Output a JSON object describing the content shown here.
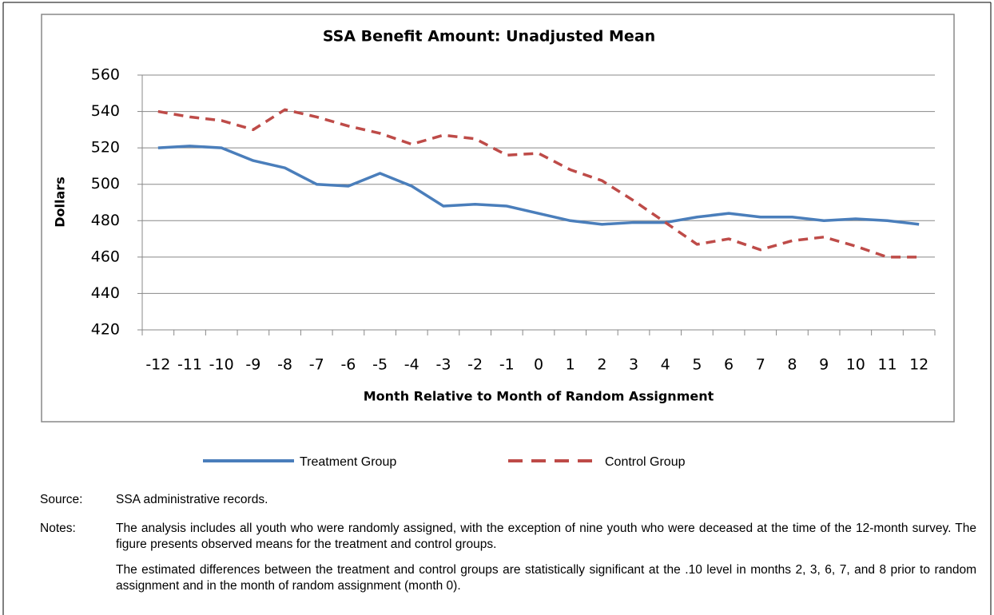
{
  "chart_data": {
    "type": "line",
    "title": "SSA Benefit Amount: Unadjusted Mean",
    "y_label": "Dollars",
    "x_label": "Month Relative to Month of Random Assignment",
    "categories": [
      "-12",
      "-11",
      "-10",
      "-9",
      "-8",
      "-7",
      "-6",
      "-5",
      "-4",
      "-3",
      "-2",
      "-1",
      "0",
      "1",
      "2",
      "3",
      "4",
      "5",
      "6",
      "7",
      "8",
      "9",
      "10",
      "11",
      "12"
    ],
    "series": [
      {
        "name": "Treatment Group",
        "color": "#4a7ebb",
        "dashed": false,
        "values": [
          520,
          521,
          520,
          513,
          509,
          500,
          499,
          506,
          499,
          488,
          489,
          488,
          484,
          480,
          478,
          479,
          479,
          482,
          484,
          482,
          482,
          480,
          481,
          480,
          478
        ]
      },
      {
        "name": "Control Group",
        "color": "#be4b48",
        "dashed": true,
        "values": [
          540,
          537,
          535,
          530,
          541,
          537,
          532,
          528,
          522,
          527,
          525,
          516,
          517,
          508,
          502,
          491,
          479,
          467,
          470,
          464,
          469,
          471,
          466,
          460,
          460
        ]
      }
    ],
    "ylim": [
      420,
      560
    ],
    "yticks": [
      420,
      440,
      460,
      480,
      500,
      520,
      540,
      560
    ],
    "grid": true,
    "legend": "bottom"
  },
  "source": {
    "label": "Source:",
    "text": "SSA administrative records."
  },
  "notes": {
    "label": "Notes:",
    "paragraphs": [
      "The analysis includes all youth who were randomly assigned, with the exception of nine youth who were deceased at the time of the 12-month survey. The figure presents observed means for the treatment and control groups.",
      "The estimated differences between the treatment and control groups are statistically significant at the .10 level in months 2, 3, 6, 7, and 8 prior to random assignment and in the month of random assignment (month 0)."
    ]
  }
}
